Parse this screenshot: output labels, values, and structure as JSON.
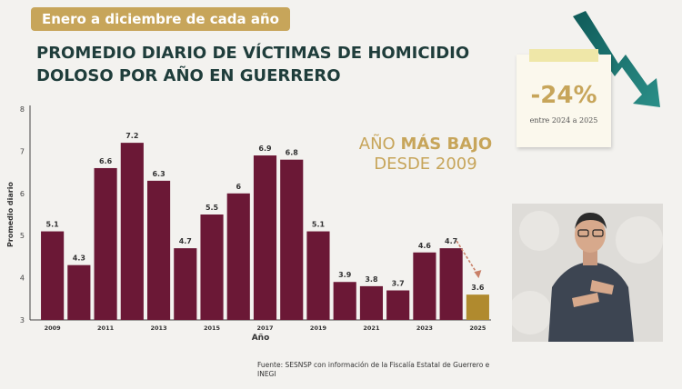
{
  "header": {
    "date_range": "Enero a diciembre de cada año",
    "title_line1": "PROMEDIO DIARIO DE VÍCTIMAS DE HOMICIDIO",
    "title_line2": "DOLOSO POR AÑO EN GUERRERO"
  },
  "annotation": {
    "lowest_prefix": "AÑO",
    "lowest_bold": "MÁS BAJO",
    "lowest_line2": "DESDE 2009"
  },
  "change_card": {
    "value": "-24%",
    "caption": "entre 2024 a 2025"
  },
  "source": {
    "line1": "Fuente: SESNSP con información de la Fiscalía Estatal de Guerrero e",
    "line2": "INEGI"
  },
  "chart_data": {
    "type": "bar",
    "title": "",
    "xlabel": "Año",
    "ylabel": "Promedio diario",
    "ylim": [
      3,
      8
    ],
    "yticks": [
      3,
      4,
      5,
      6,
      7,
      8
    ],
    "categories": [
      "2009",
      "2010",
      "2011",
      "2012",
      "2013",
      "2014",
      "2015",
      "2016",
      "2017",
      "2018",
      "2019",
      "2020",
      "2021",
      "2022",
      "2023",
      "2024",
      "2025"
    ],
    "x_tick_labels": [
      "2009",
      "",
      "2011",
      "",
      "2013",
      "",
      "2015",
      "",
      "2017",
      "",
      "2019",
      "",
      "2021",
      "",
      "2023",
      "",
      "2025"
    ],
    "values": [
      5.1,
      4.3,
      6.6,
      7.2,
      6.3,
      4.7,
      5.5,
      6.0,
      6.9,
      6.8,
      5.1,
      3.9,
      3.8,
      3.7,
      4.6,
      4.7,
      3.6
    ],
    "value_labels": [
      "5.1",
      "4.3",
      "6.6",
      "7.2",
      "6.3",
      "4.7",
      "5.5",
      "6",
      "6.9",
      "6.8",
      "5.1",
      "3.9",
      "3.8",
      "3.7",
      "4.6",
      "4.7",
      "3.6"
    ],
    "highlight_category": "2025",
    "colors": {
      "bar": "#6b1836",
      "highlight": "#b08a2e",
      "axis": "#444444",
      "trend_arrow": "#c98068"
    },
    "grid": false,
    "legend": "none"
  }
}
